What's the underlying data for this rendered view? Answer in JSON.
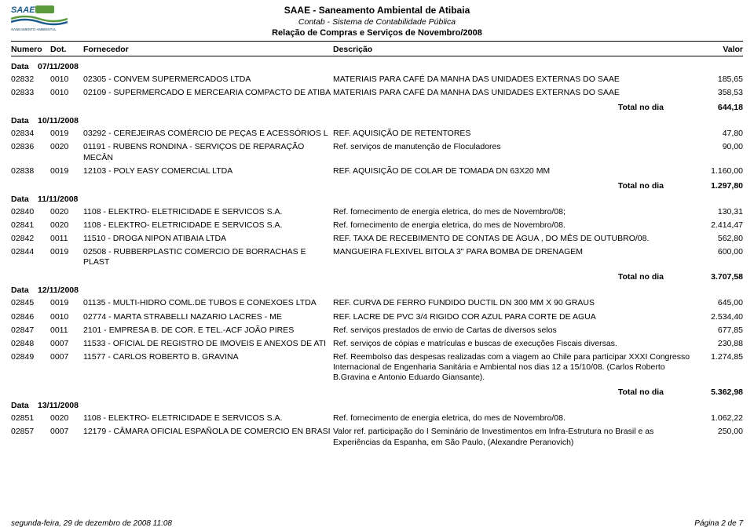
{
  "header": {
    "org": "SAAE - Saneamento Ambiental de Atibaia",
    "system": "Contab - Sistema de Contabilidade Pública",
    "report": "Relação de Compras e Serviços de Novembro/2008",
    "logo_sub": "SANEAMENTO AMBIENTAL"
  },
  "columns": {
    "numero": "Numero",
    "dot": "Dot.",
    "fornecedor": "Fornecedor",
    "descricao": "Descrição",
    "valor": "Valor"
  },
  "date_label": "Data",
  "total_label": "Total no dia",
  "groups": [
    {
      "date": "07/11/2008",
      "rows": [
        {
          "num": "02832",
          "dot": "0010",
          "forn": "02305 - CONVEM SUPERMERCADOS LTDA",
          "desc": "MATERIAIS PARA CAFÉ DA MANHA DAS UNIDADES EXTERNAS DO SAAE",
          "val": "185,65"
        },
        {
          "num": "02833",
          "dot": "0010",
          "forn": "02109 - SUPERMERCADO E MERCEARIA COMPACTO DE ATIBA",
          "desc": "MATERIAIS PARA CAFÉ DA MANHA DAS UNIDADES EXTERNAS DO SAAE",
          "val": "358,53"
        }
      ],
      "total": "644,18"
    },
    {
      "date": "10/11/2008",
      "rows": [
        {
          "num": "02834",
          "dot": "0019",
          "forn": "03292 - CEREJEIRAS COMÉRCIO DE PEÇAS E ACESSÓRIOS L",
          "desc": "REF. AQUISIÇÃO DE RETENTORES",
          "val": "47,80"
        },
        {
          "num": "02836",
          "dot": "0020",
          "forn": "01191 - RUBENS RONDINA - SERVIÇOS DE REPARAÇÃO MECÂN",
          "desc": "Ref. serviços de manutenção de Floculadores",
          "val": "90,00"
        },
        {
          "num": "02838",
          "dot": "0019",
          "forn": "12103 - POLY EASY COMERCIAL LTDA",
          "desc": "REF. AQUISIÇÃO DE COLAR DE TOMADA DN 63X20 MM",
          "val": "1.160,00"
        }
      ],
      "total": "1.297,80"
    },
    {
      "date": "11/11/2008",
      "rows": [
        {
          "num": "02840",
          "dot": "0020",
          "forn": "1108 - ELEKTRO- ELETRICIDADE E SERVICOS S.A.",
          "desc": "Ref. fornecimento de energia eletrica, do mes de Novembro/08;",
          "val": "130,31"
        },
        {
          "num": "02841",
          "dot": "0020",
          "forn": "1108 - ELEKTRO- ELETRICIDADE E SERVICOS S.A.",
          "desc": "Ref. fornecimento de energia eletrica, do mes de Novembro/08.",
          "val": "2.414,47"
        },
        {
          "num": "02842",
          "dot": "0011",
          "forn": "11510 - DROGA NIPON ATIBAIA LTDA",
          "desc": "REF. TAXA DE RECEBIMENTO DE CONTAS DE ÁGUA , DO MÊS DE OUTUBRO/08.",
          "val": "562,80"
        },
        {
          "num": "02844",
          "dot": "0019",
          "forn": "02508 - RUBBERPLASTIC COMERCIO DE BORRACHAS E PLAST",
          "desc": "MANGUEIRA FLEXIVEL BITOLA 3\" PARA BOMBA DE DRENAGEM",
          "val": "600,00"
        }
      ],
      "total": "3.707,58"
    },
    {
      "date": "12/11/2008",
      "rows": [
        {
          "num": "02845",
          "dot": "0019",
          "forn": "01135 - MULTI-HIDRO COML.DE TUBOS E CONEXOES LTDA",
          "desc": "REF. CURVA DE FERRO FUNDIDO DUCTIL DN 300 MM X 90 GRAUS",
          "val": "645,00"
        },
        {
          "num": "02846",
          "dot": "0010",
          "forn": "02774 - MARTA STRABELLI NAZARIO LACRES - ME",
          "desc": "REF. LACRE DE PVC 3/4 RIGIDO COR AZUL PARA CORTE DE AGUA",
          "val": "2.534,40"
        },
        {
          "num": "02847",
          "dot": "0011",
          "forn": "2101 - EMPRESA B. DE COR. E TEL.-ACF JOÃO PIRES",
          "desc": "Ref. serviços prestados de envio de Cartas de diversos selos",
          "val": "677,85"
        },
        {
          "num": "02848",
          "dot": "0007",
          "forn": "11533 - OFICIAL DE REGISTRO DE IMOVEIS E ANEXOS DE ATI",
          "desc": "Ref. serviços de cópias e matrículas e buscas de execuções Fiscais diversas.",
          "val": "230,88"
        },
        {
          "num": "02849",
          "dot": "0007",
          "forn": "11577 - CARLOS ROBERTO B. GRAVINA",
          "desc": "Ref. Reembolso das despesas realizadas com a viagem ao Chile para participar XXXI Congresso Internacional de Engenharia Sanitária e Ambiental nos dias 12 a 15/10/08. (Carlos Roberto B.Gravina e Antonio Eduardo Giansante).",
          "val": "1.274,85"
        }
      ],
      "total": "5.362,98"
    },
    {
      "date": "13/11/2008",
      "rows": [
        {
          "num": "02851",
          "dot": "0020",
          "forn": "1108 - ELEKTRO- ELETRICIDADE E SERVICOS S.A.",
          "desc": "Ref. fornecimento de energia eletrica, do mes de Novembro/08.",
          "val": "1.062,22"
        },
        {
          "num": "02857",
          "dot": "0007",
          "forn": "12179 - CÂMARA OFICIAL ESPAÑOLA DE COMERCIO EN BRASI",
          "desc": "Valor ref. participação do I Seminário de Investimentos em Infra-Estrutura no Brasil e as Experiências da Espanha, em São Paulo, (Alexandre Peranovich)",
          "val": "250,00"
        }
      ],
      "total": null
    }
  ],
  "footer": {
    "left": "segunda-feira, 29 de dezembro de 2008  11:08",
    "right": "Página 2 de 7"
  },
  "colors": {
    "text": "#000000",
    "bg": "#ffffff",
    "logo_blue": "#1a5a8a",
    "logo_green": "#5a9a3a",
    "logo_dkblue": "#0a3a5a"
  }
}
